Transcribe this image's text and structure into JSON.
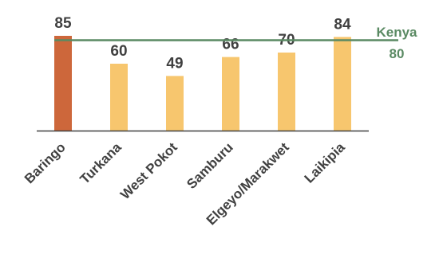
{
  "chart_data": {
    "type": "bar",
    "categories": [
      "Baringo",
      "Turkana",
      "West Pokot",
      "Samburu",
      "Elgeyo/Marakwet",
      "Laikipia"
    ],
    "values": [
      85,
      60,
      49,
      66,
      70,
      84
    ],
    "bar_colors": [
      "#cd673b",
      "#f7c66e",
      "#f7c66e",
      "#f7c66e",
      "#f7c66e",
      "#f7c66e"
    ],
    "reference_line": {
      "label": "Kenya",
      "value": 80,
      "value_label": "80",
      "color": "#5a8a63"
    },
    "ylim": [
      0,
      85
    ],
    "grid": false,
    "axis_color": "#404040",
    "text_color": "#404040"
  }
}
